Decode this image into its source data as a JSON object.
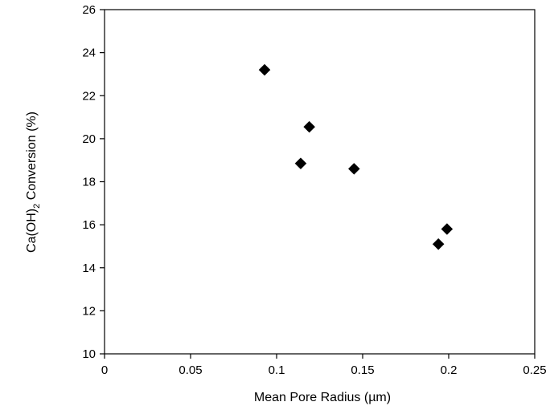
{
  "chart_data": {
    "type": "scatter",
    "title": "",
    "xlabel": "Mean Pore Radius (µm)",
    "ylabel": {
      "prefix": "Ca(OH)",
      "subscript": "2",
      "suffix": " Conversion (%)"
    },
    "xlim": [
      0,
      0.25
    ],
    "ylim": [
      10,
      26
    ],
    "xticks": [
      0,
      0.05,
      0.1,
      0.15,
      0.2,
      0.25
    ],
    "xtick_labels": [
      "0",
      "0.05",
      "0.1",
      "0.15",
      "0.2",
      "0.25"
    ],
    "yticks": [
      10,
      12,
      14,
      16,
      18,
      20,
      22,
      24,
      26
    ],
    "ytick_labels": [
      "10",
      "12",
      "14",
      "16",
      "18",
      "20",
      "22",
      "24",
      "26"
    ],
    "grid": false,
    "marker": "diamond",
    "marker_color": "#000000",
    "points": [
      {
        "x": 0.093,
        "y": 23.2
      },
      {
        "x": 0.114,
        "y": 18.85
      },
      {
        "x": 0.119,
        "y": 20.55
      },
      {
        "x": 0.145,
        "y": 18.6
      },
      {
        "x": 0.194,
        "y": 15.1
      },
      {
        "x": 0.199,
        "y": 15.8
      }
    ]
  }
}
